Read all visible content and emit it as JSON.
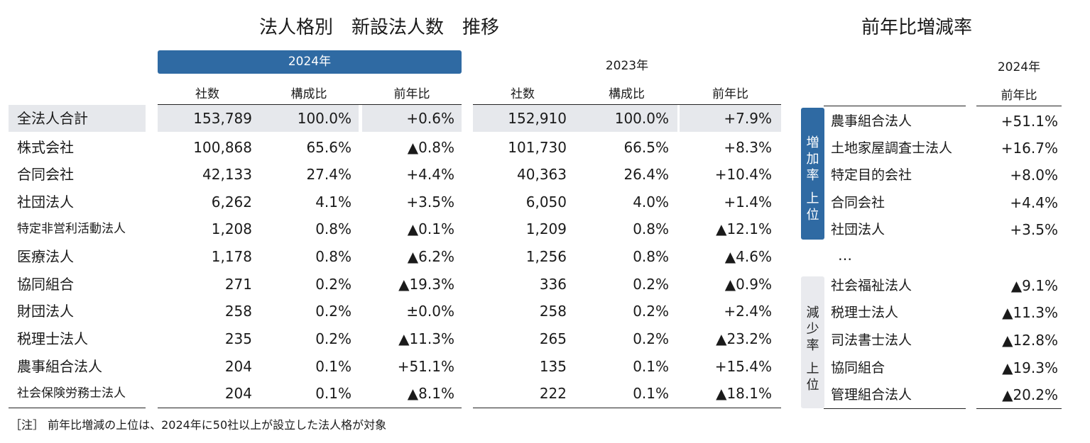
{
  "main_title": "法人格別　新設法人数　推移",
  "ranking_title": "前年比増減率",
  "year_2024": "2024年",
  "year_2023": "2023年",
  "col_headers": [
    "社数",
    "構成比",
    "前年比"
  ],
  "chart_data": {
    "type": "table",
    "rows": [
      {
        "name": "全法人合計",
        "c2024": "153,789",
        "s2024": "100.0%",
        "y2024": "+0.6%",
        "c2023": "152,910",
        "s2023": "100.0%",
        "y2023": "+7.9%"
      },
      {
        "name": "株式会社",
        "c2024": "100,868",
        "s2024": "65.6%",
        "y2024": "▲0.8%",
        "c2023": "101,730",
        "s2023": "66.5%",
        "y2023": "+8.3%"
      },
      {
        "name": "合同会社",
        "c2024": "42,133",
        "s2024": "27.4%",
        "y2024": "+4.4%",
        "c2023": "40,363",
        "s2023": "26.4%",
        "y2023": "+10.4%"
      },
      {
        "name": "社団法人",
        "c2024": "6,262",
        "s2024": "4.1%",
        "y2024": "+3.5%",
        "c2023": "6,050",
        "s2023": "4.0%",
        "y2023": "+1.4%"
      },
      {
        "name": "特定非営利活動法人",
        "c2024": "1,208",
        "s2024": "0.8%",
        "y2024": "▲0.1%",
        "c2023": "1,209",
        "s2023": "0.8%",
        "y2023": "▲12.1%"
      },
      {
        "name": "医療法人",
        "c2024": "1,178",
        "s2024": "0.8%",
        "y2024": "▲6.2%",
        "c2023": "1,256",
        "s2023": "0.8%",
        "y2023": "▲4.6%"
      },
      {
        "name": "協同組合",
        "c2024": "271",
        "s2024": "0.2%",
        "y2024": "▲19.3%",
        "c2023": "336",
        "s2023": "0.2%",
        "y2023": "▲0.9%"
      },
      {
        "name": "財団法人",
        "c2024": "258",
        "s2024": "0.2%",
        "y2024": "±0.0%",
        "c2023": "258",
        "s2023": "0.2%",
        "y2023": "+2.4%"
      },
      {
        "name": "税理士法人",
        "c2024": "235",
        "s2024": "0.2%",
        "y2024": "▲11.3%",
        "c2023": "265",
        "s2023": "0.2%",
        "y2023": "▲23.2%"
      },
      {
        "name": "農事組合法人",
        "c2024": "204",
        "s2024": "0.1%",
        "y2024": "+51.1%",
        "c2023": "135",
        "s2023": "0.1%",
        "y2023": "+15.4%"
      },
      {
        "name": "社会保険労務士法人",
        "c2024": "204",
        "s2024": "0.1%",
        "y2024": "▲8.1%",
        "c2023": "222",
        "s2023": "0.1%",
        "y2023": "▲18.1%"
      }
    ],
    "ranking": {
      "year": "2024年",
      "header": "前年比",
      "increase_label": "増加率上位",
      "decrease_label": "減少率上位",
      "ellipsis": "…",
      "increase": [
        {
          "name": "農事組合法人",
          "value": "+51.1%"
        },
        {
          "name": "土地家屋調査士法人",
          "value": "+16.7%"
        },
        {
          "name": "特定目的会社",
          "value": "+8.0%"
        },
        {
          "name": "合同会社",
          "value": "+4.4%"
        },
        {
          "name": "社団法人",
          "value": "+3.5%"
        }
      ],
      "decrease": [
        {
          "name": "社会福祉法人",
          "value": "▲9.1%"
        },
        {
          "name": "税理士法人",
          "value": "▲11.3%"
        },
        {
          "name": "司法書士法人",
          "value": "▲12.8%"
        },
        {
          "name": "協同組合",
          "value": "▲19.3%"
        },
        {
          "name": "管理組合法人",
          "value": "▲20.2%"
        }
      ]
    }
  },
  "note": "［注］ 前年比増減の上位は、2024年に50社以上が設立した法人格が対象"
}
